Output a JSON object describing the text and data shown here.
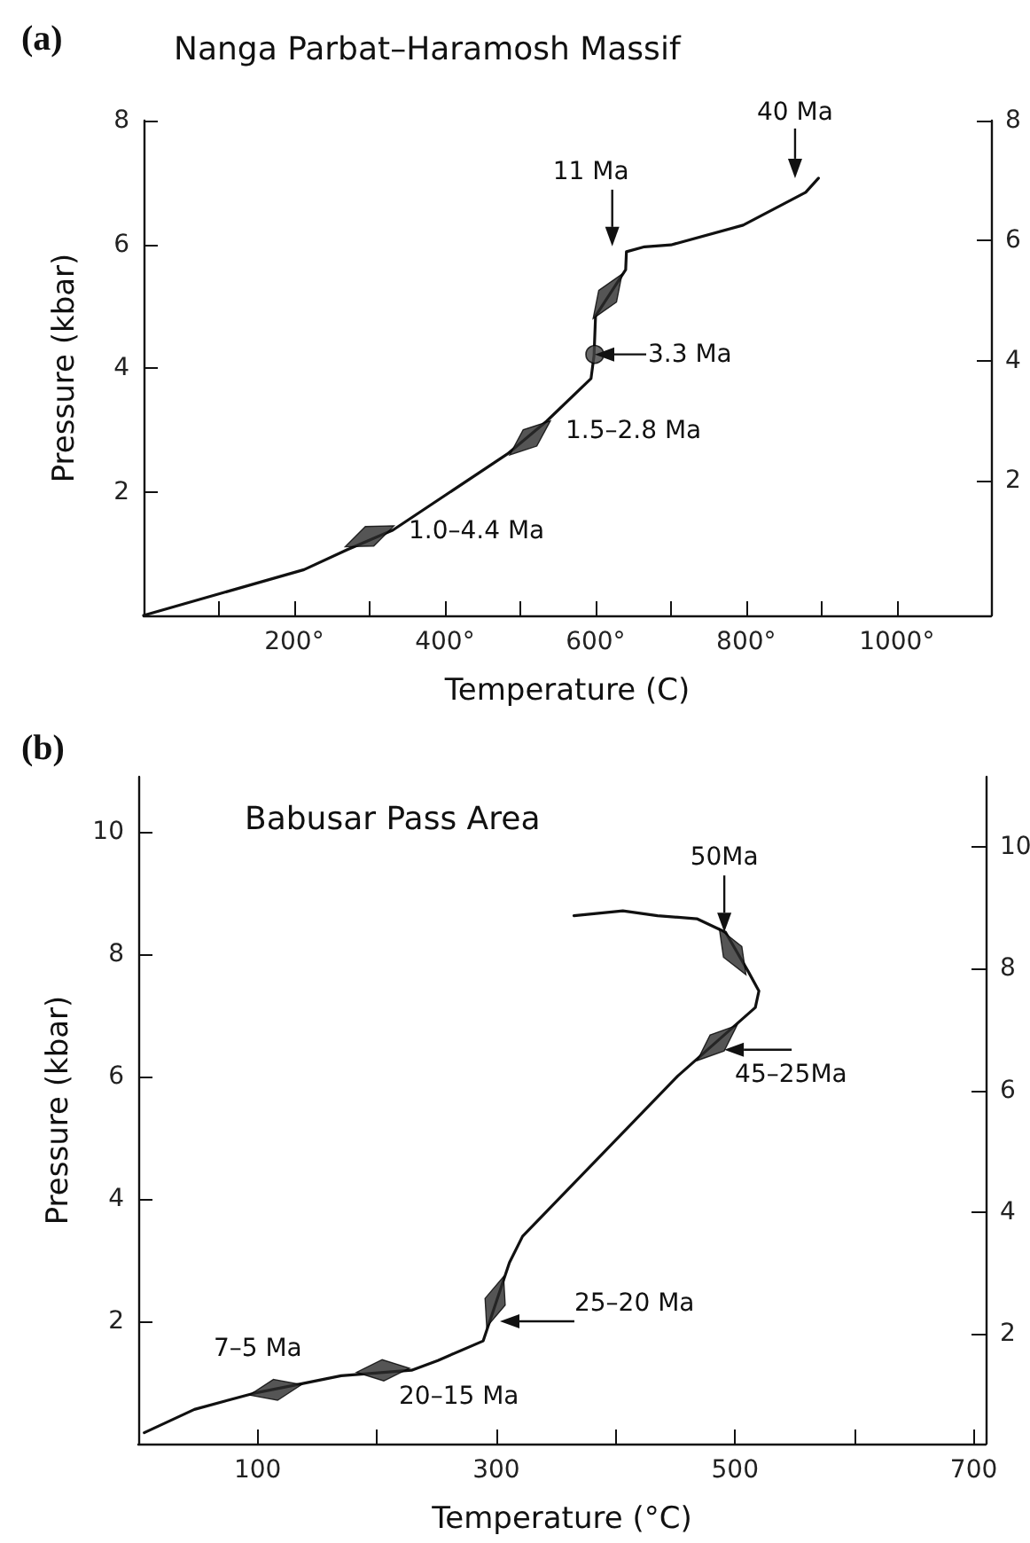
{
  "chart_data": [
    {
      "type": "line",
      "title": "Nanga Parbat–Haramosh Massif",
      "xlabel": "Temperature (C)",
      "ylabel": "Pressure (kbar)",
      "xlim": [
        0,
        1125
      ],
      "xticks": [
        {
          "value": 100,
          "label": null
        },
        {
          "value": 200,
          "label": "200°"
        },
        {
          "value": 300,
          "label": null
        },
        {
          "value": 400,
          "label": "400°"
        },
        {
          "value": 500,
          "label": null
        },
        {
          "value": 600,
          "label": "600°"
        },
        {
          "value": 700,
          "label": null
        },
        {
          "value": 800,
          "label": "800°"
        },
        {
          "value": 900,
          "label": null
        },
        {
          "value": 1000,
          "label": "1000°"
        }
      ],
      "ylim": [
        0,
        8
      ],
      "yticks": [
        2,
        4,
        6,
        8
      ],
      "y2lim": [
        -0.24,
        8
      ],
      "y2ticks": [
        2,
        4,
        6,
        8
      ],
      "grid": false,
      "annotations": [
        "(a)",
        {
          "text": "40 Ma",
          "x": 879,
          "y": 6.84
        },
        {
          "text": "11 Ma",
          "x": 641,
          "y": 5.88
        },
        {
          "text": "3.3 Ma",
          "x": 599,
          "y": 4.22
        },
        {
          "text": "1.5–2.8 Ma",
          "x": 513,
          "y": 2.87
        },
        {
          "text": "1.0–4.4 Ma",
          "x": 300,
          "y": 1.28
        }
      ],
      "series": [
        {
          "type": "line",
          "color": "#111111",
          "marker": "none",
          "line_style": "solid",
          "x": [
            0,
            213,
            270,
            331,
            483,
            535,
            594,
            598,
            600,
            640,
            641,
            665,
            700,
            796,
            879,
            896
          ],
          "values": [
            0,
            0.74,
            1.06,
            1.38,
            2.61,
            3.14,
            3.83,
            4.2,
            4.84,
            5.59,
            5.88,
            5.96,
            5.99,
            6.31,
            6.84,
            7.07
          ]
        },
        {
          "type": "scatter",
          "color": "#2a2a2a",
          "marker": "diamond",
          "x": [
            300,
            513,
            616
          ],
          "values": [
            1.28,
            2.87,
            5.16
          ]
        },
        {
          "type": "scatter",
          "color": "#444444",
          "marker": "circle",
          "x": [
            599
          ],
          "values": [
            4.22
          ]
        }
      ]
    },
    {
      "type": "line",
      "title": "Babusar Pass Area",
      "xlabel": "Temperature (°C)",
      "ylabel": "Pressure (kbar)",
      "xlim": [
        0,
        710
      ],
      "xticks": [
        100,
        {
          "value": 200,
          "label": null
        },
        300,
        {
          "value": 400,
          "label": null
        },
        500,
        {
          "value": 600,
          "label": null
        },
        700
      ],
      "ylim": [
        0,
        10.9
      ],
      "yticks": [
        2,
        4,
        6,
        8,
        10
      ],
      "y2lim": [
        0.2,
        11.15
      ],
      "y2ticks": [
        2,
        4,
        6,
        8,
        10
      ],
      "grid": false,
      "annotations": [
        "(b)",
        {
          "text": "50Ma",
          "x": 491,
          "y": 8.36
        },
        {
          "text": "45–25Ma",
          "x": 491,
          "y": 6.44
        },
        {
          "text": "25–20 Ma",
          "x": 303,
          "y": 2.0
        },
        {
          "text": "20–15 Ma",
          "x": 205,
          "y": 1.2
        },
        {
          "text": "7–5 Ma",
          "x": 115,
          "y": 0.88
        }
      ],
      "series": [
        {
          "type": "line",
          "color": "#111111",
          "marker": "none",
          "line_style": "solid",
          "x": [
            5,
            47,
            96,
            137,
            170,
            229,
            251,
            289,
            311,
            322,
            452,
            517,
            520,
            511,
            492,
            468,
            435,
            406,
            365
          ],
          "values": [
            0.18,
            0.56,
            0.82,
            0.98,
            1.11,
            1.2,
            1.36,
            1.68,
            2.96,
            3.39,
            6.01,
            7.13,
            7.4,
            7.72,
            8.36,
            8.58,
            8.63,
            8.71,
            8.63
          ]
        },
        {
          "type": "scatter",
          "color": "#2a2a2a",
          "marker": "diamond",
          "x": [
            115,
            205,
            299,
            485,
            498
          ],
          "values": [
            0.88,
            1.2,
            2.32,
            6.55,
            8.04
          ]
        }
      ]
    }
  ]
}
